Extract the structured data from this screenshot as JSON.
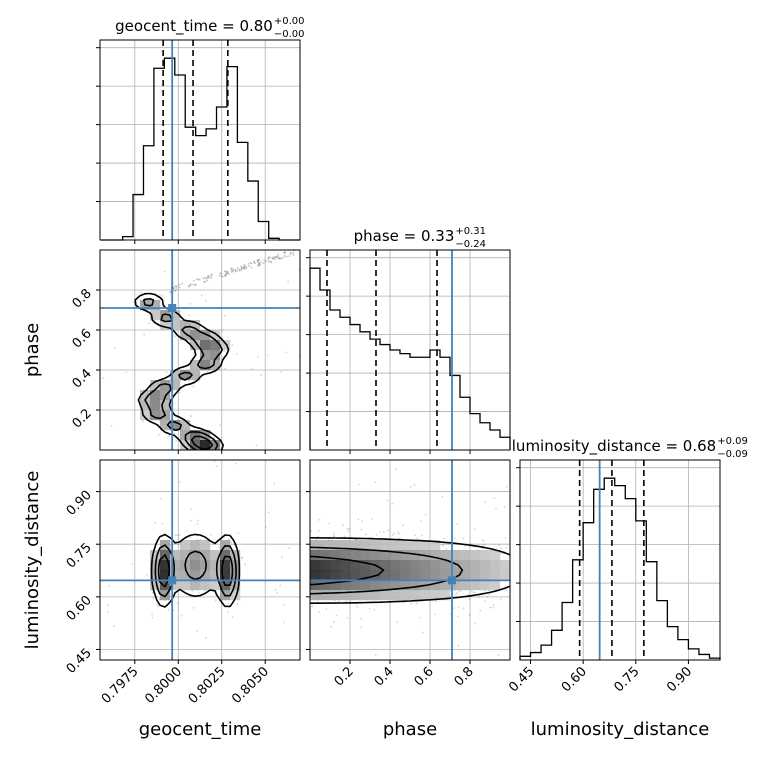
{
  "chart_data": {
    "type": "corner",
    "truth_color": "#4682b4",
    "hist_color": "#000000",
    "params": [
      {
        "name": "geocent_time",
        "xlabel": "geocent_time",
        "title": {
          "prefix": "geocent_time = 0.80",
          "plus": "+0.00",
          "minus": "−0.00"
        },
        "range": [
          0.7955,
          0.807
        ],
        "ticks": [
          0.7975,
          0.8,
          0.8025,
          0.805
        ],
        "tick_labels": [
          "0.7975",
          "0.8000",
          "0.8025",
          "0.8050"
        ],
        "quantiles": [
          0.79913,
          0.80085,
          0.80285
        ],
        "truth": 0.79965,
        "hist": {
          "bin_edges": [
            0.7956,
            0.7962,
            0.7968,
            0.7974,
            0.798,
            0.7986,
            0.7992,
            0.7998,
            0.8004,
            0.801,
            0.8016,
            0.8022,
            0.8028,
            0.8034,
            0.804,
            0.8046,
            0.8052,
            0.8058,
            0.8064,
            0.807
          ],
          "counts": [
            0,
            0,
            2,
            27,
            56,
            102,
            108,
            98,
            67,
            62,
            66,
            79,
            103,
            58,
            35,
            11,
            1,
            0,
            0
          ]
        }
      },
      {
        "name": "phase",
        "xlabel": "phase",
        "ylabel": "phase",
        "title": {
          "prefix": "phase = 0.33",
          "plus": "+0.31",
          "minus": "−0.24"
        },
        "range": [
          0.0,
          1.0
        ],
        "ticks": [
          0.2,
          0.4,
          0.6,
          0.8
        ],
        "tick_labels": [
          "0.2",
          "0.4",
          "0.6",
          "0.8"
        ],
        "quantiles": [
          0.085,
          0.33,
          0.635
        ],
        "truth": 0.71,
        "hist": {
          "bin_edges": [
            0.0,
            0.05,
            0.1,
            0.15,
            0.2,
            0.25,
            0.3,
            0.35,
            0.4,
            0.45,
            0.5,
            0.55,
            0.6,
            0.65,
            0.7,
            0.75,
            0.8,
            0.85,
            0.9,
            0.95,
            1.0
          ],
          "counts": [
            100,
            88,
            77,
            73,
            69,
            65,
            61,
            58,
            55,
            53,
            51,
            51,
            55,
            51,
            41,
            29,
            20,
            15,
            11,
            7
          ]
        }
      },
      {
        "name": "luminosity_distance",
        "xlabel": "luminosity_distance",
        "ylabel": "luminosity_distance",
        "title": {
          "prefix": "luminosity_distance = 0.68",
          "plus": "+0.09",
          "minus": "−0.09"
        },
        "range": [
          0.42,
          0.99
        ],
        "ticks": [
          0.45,
          0.6,
          0.75,
          0.9
        ],
        "tick_labels": [
          "0.45",
          "0.60",
          "0.75",
          "0.90"
        ],
        "quantiles": [
          0.59,
          0.682,
          0.773
        ],
        "truth": 0.647,
        "hist": {
          "bin_edges": [
            0.42,
            0.45,
            0.48,
            0.51,
            0.54,
            0.57,
            0.6,
            0.63,
            0.66,
            0.69,
            0.72,
            0.75,
            0.78,
            0.81,
            0.84,
            0.87,
            0.9,
            0.93,
            0.96,
            0.99
          ],
          "counts": [
            2,
            4,
            8,
            16,
            31,
            54,
            74,
            92,
            98,
            94,
            87,
            75,
            53,
            32,
            18,
            11,
            6,
            3,
            1
          ]
        }
      }
    ]
  }
}
